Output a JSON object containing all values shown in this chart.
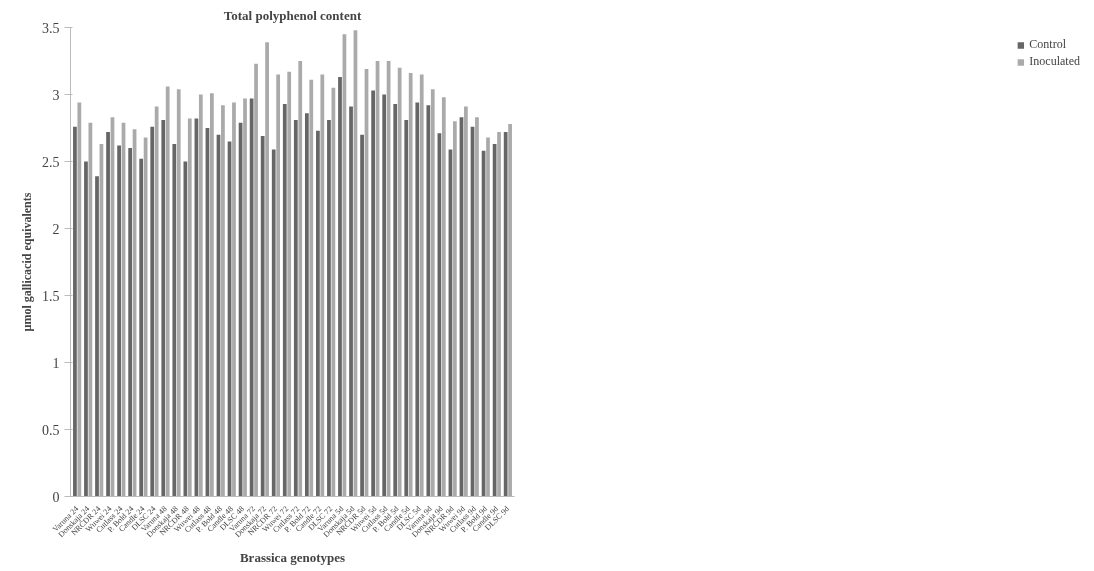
{
  "chart_data": {
    "type": "bar",
    "title": "Total polyphenol content",
    "xlabel": "Brassica genotypes",
    "ylabel": "µmol gallicacid equivalents",
    "categories": [
      "Varuna 24",
      "Donskaja 24",
      "NRCDR 24",
      "Wuwei 24",
      "Cutlass 24",
      "P. Bold 24",
      "Candle 24",
      "DLSC 24",
      "Varuna 48",
      "Donskaja 48",
      "NRCDR 48",
      "Wuwei 48",
      "Cutlass 48",
      "P. Bold 48",
      "Candle 48",
      "DLSC 48",
      "Varuna 72",
      "Donskaja 72",
      "NRCDR 72",
      "Wuwei 72",
      "Cutlass 72",
      "P. Bold 72",
      "Candle 72",
      "DLSC 72",
      "Varuna 5d",
      "Donskaja 5d",
      "NRCDR 5d",
      "Wuwei 5d",
      "Cutlass 5d",
      "P. Bold 5d",
      "Candle 5d",
      "DLSC 5d",
      "Varuna 9d",
      "Donskaja 9d",
      "NRCDR 9d",
      "Wuwei 9d",
      "Cutlass 9d",
      "P. Bold 9d",
      "Candle 9d",
      "DLSC 9d"
    ],
    "series": [
      {
        "name": "Control",
        "color": "#666666",
        "values": [
          2.76,
          2.5,
          2.39,
          2.72,
          2.62,
          2.6,
          2.52,
          2.76,
          2.81,
          2.63,
          2.5,
          2.82,
          2.75,
          2.7,
          2.65,
          2.79,
          2.97,
          2.69,
          2.59,
          2.93,
          2.81,
          2.86,
          2.73,
          2.81,
          3.13,
          2.91,
          2.7,
          3.03,
          3.0,
          2.93,
          2.81,
          2.94,
          2.92,
          2.71,
          2.59,
          2.83,
          2.76,
          2.58,
          2.63,
          2.72
        ]
      },
      {
        "name": "Inoculated",
        "color": "#aaaaaa",
        "values": [
          2.94,
          2.79,
          2.63,
          2.83,
          2.79,
          2.74,
          2.68,
          2.91,
          3.06,
          3.04,
          2.82,
          3.0,
          3.01,
          2.92,
          2.94,
          2.97,
          3.23,
          3.39,
          3.15,
          3.17,
          3.25,
          3.11,
          3.15,
          3.05,
          3.45,
          3.48,
          3.19,
          3.25,
          3.25,
          3.2,
          3.16,
          3.15,
          3.04,
          2.98,
          2.8,
          2.91,
          2.83,
          2.68,
          2.72,
          2.78
        ]
      }
    ],
    "ylim": [
      0,
      3.5
    ],
    "yticks": [
      0,
      0.5,
      1,
      1.5,
      2,
      2.5,
      3,
      3.5
    ],
    "grid": false,
    "legend": "right"
  }
}
